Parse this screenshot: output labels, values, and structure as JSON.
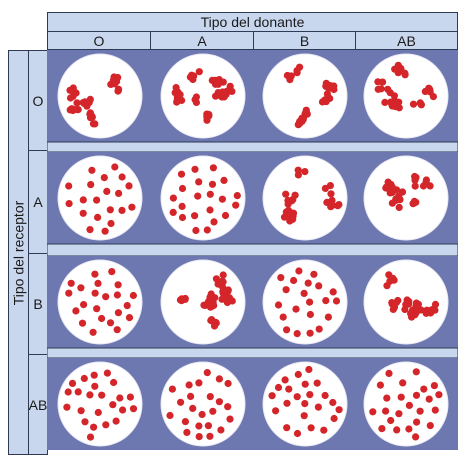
{
  "title": "",
  "donor_header": "Tipo del donante",
  "recipient_header": "Tipo del receptor",
  "donor_types": [
    "O",
    "A",
    "B",
    "AB"
  ],
  "recipient_types": [
    "O",
    "A",
    "B",
    "AB"
  ],
  "colors": {
    "header_bg": "#c9d7ee",
    "plate_bg": "#6e78b0",
    "well": "#ffffff",
    "cell": "#d4262a"
  },
  "agglutination": [
    [
      true,
      true,
      true,
      true
    ],
    [
      false,
      false,
      true,
      true
    ],
    [
      false,
      true,
      false,
      true
    ],
    [
      false,
      false,
      false,
      false
    ]
  ]
}
